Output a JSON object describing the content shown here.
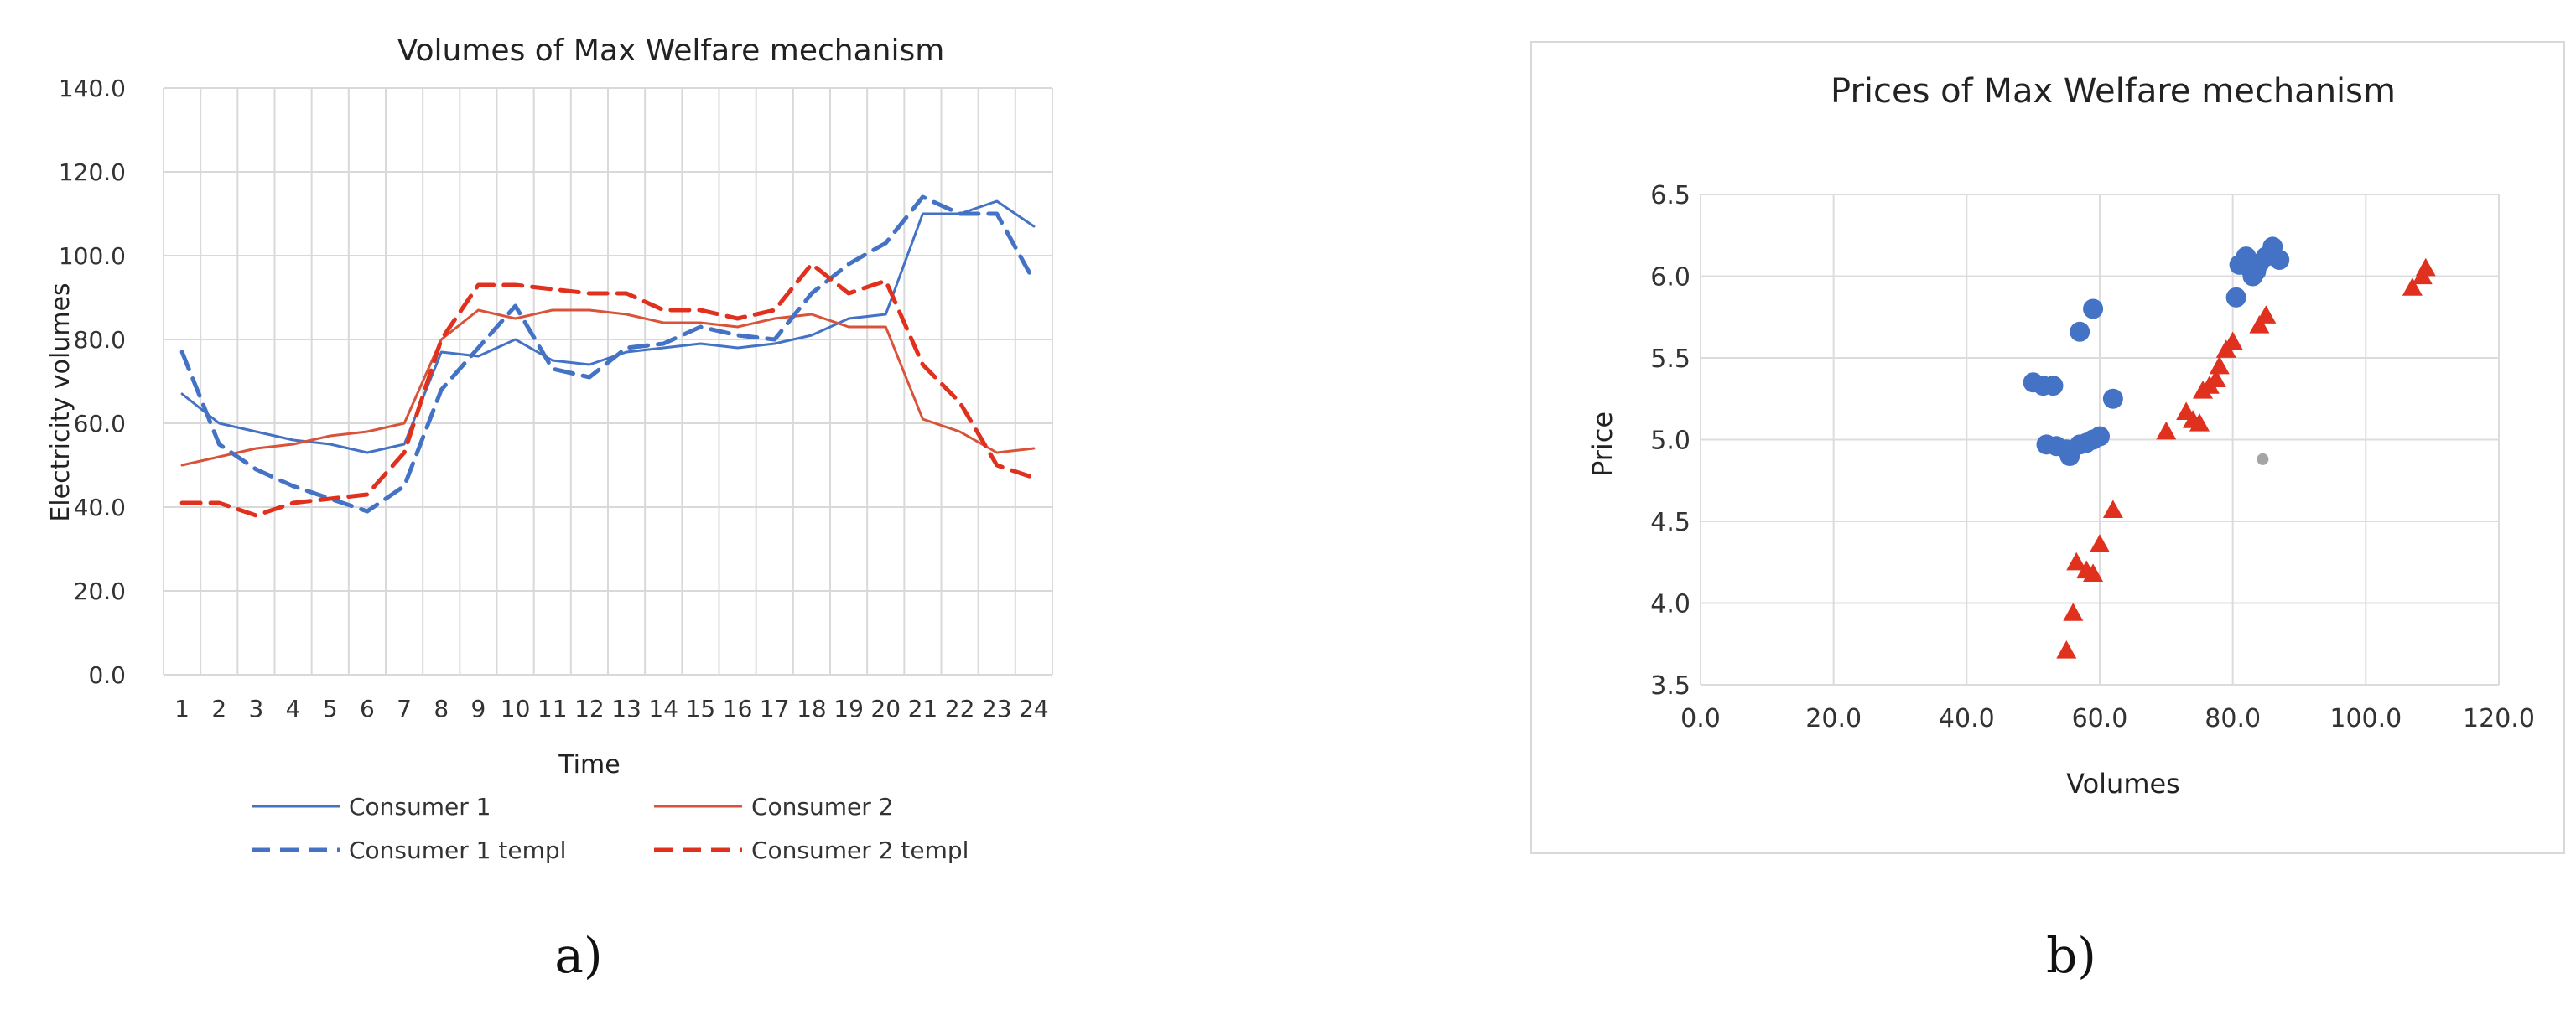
{
  "chart_data": [
    {
      "type": "line",
      "title": "Volumes of Max Welfare mechanism",
      "xlabel": "Time",
      "ylabel": "Electricity volumes",
      "ylim": [
        0,
        140
      ],
      "y_ticks": [
        "0.0",
        "20.0",
        "40.0",
        "60.0",
        "80.0",
        "100.0",
        "120.0",
        "140.0"
      ],
      "categories": [
        "1",
        "2",
        "3",
        "4",
        "5",
        "6",
        "7",
        "8",
        "9",
        "10",
        "11",
        "12",
        "13",
        "14",
        "15",
        "16",
        "17",
        "18",
        "19",
        "20",
        "21",
        "22",
        "23",
        "24"
      ],
      "grid": true,
      "legend": "bottom",
      "series": [
        {
          "name": "Consumer 1",
          "style": "solid",
          "color": "#4472c4",
          "values": [
            67,
            60,
            58,
            56,
            55,
            53,
            55,
            77,
            76,
            80,
            75,
            74,
            77,
            78,
            79,
            78,
            79,
            81,
            85,
            86,
            110,
            110,
            113,
            107
          ]
        },
        {
          "name": "Consumer 2",
          "style": "solid",
          "color": "#d9533a",
          "values": [
            50,
            52,
            54,
            55,
            57,
            58,
            60,
            80,
            87,
            85,
            87,
            87,
            86,
            84,
            84,
            83,
            85,
            86,
            83,
            83,
            61,
            58,
            53,
            54
          ]
        },
        {
          "name": "Consumer 1 templ",
          "style": "dashed",
          "color": "#4472c4",
          "values": [
            77,
            55,
            49,
            45,
            42,
            39,
            45,
            68,
            78,
            88,
            73,
            71,
            78,
            79,
            83,
            81,
            80,
            91,
            98,
            103,
            114,
            110,
            110,
            94
          ]
        },
        {
          "name": "Consumer 2 templ",
          "style": "dashed",
          "color": "#e0301e",
          "values": [
            41,
            41,
            38,
            41,
            42,
            43,
            53,
            80,
            93,
            93,
            92,
            91,
            91,
            87,
            87,
            85,
            87,
            98,
            91,
            94,
            74,
            65,
            50,
            47
          ]
        }
      ]
    },
    {
      "type": "scatter",
      "title": "Prices of Max Welfare mechanism",
      "xlabel": "Volumes",
      "ylabel": "Price",
      "xlim": [
        0,
        120
      ],
      "ylim": [
        3.5,
        6.5
      ],
      "x_ticks": [
        "0.0",
        "20.0",
        "40.0",
        "60.0",
        "80.0",
        "100.0",
        "120.0"
      ],
      "y_ticks": [
        "3.5",
        "4.0",
        "4.5",
        "5.0",
        "5.5",
        "6.0",
        "6.5"
      ],
      "grid": true,
      "series": [
        {
          "marker": "circle",
          "color": "#4472c4",
          "points": [
            [
              50,
              5.35
            ],
            [
              51.5,
              5.33
            ],
            [
              53,
              5.33
            ],
            [
              52,
              4.97
            ],
            [
              53.5,
              4.96
            ],
            [
              55,
              4.94
            ],
            [
              55.5,
              4.9
            ],
            [
              57,
              4.97
            ],
            [
              58,
              4.98
            ],
            [
              59,
              5.0
            ],
            [
              60,
              5.02
            ],
            [
              57,
              5.66
            ],
            [
              59,
              5.8
            ],
            [
              62,
              5.25
            ],
            [
              80.5,
              5.87
            ],
            [
              81,
              6.07
            ],
            [
              82,
              6.12
            ],
            [
              82.5,
              6.05
            ],
            [
              83,
              6.0
            ],
            [
              84,
              6.08
            ],
            [
              85,
              6.12
            ],
            [
              86,
              6.18
            ],
            [
              87,
              6.1
            ],
            [
              83.5,
              6.03
            ]
          ]
        },
        {
          "marker": "triangle",
          "color": "#e0301e",
          "points": [
            [
              55,
              3.71
            ],
            [
              56,
              3.94
            ],
            [
              56.5,
              4.25
            ],
            [
              58,
              4.2
            ],
            [
              59,
              4.18
            ],
            [
              60,
              4.36
            ],
            [
              62,
              4.57
            ],
            [
              70,
              5.05
            ],
            [
              73,
              5.17
            ],
            [
              74,
              5.12
            ],
            [
              75,
              5.1
            ],
            [
              75.5,
              5.3
            ],
            [
              76.5,
              5.33
            ],
            [
              77.5,
              5.37
            ],
            [
              78,
              5.45
            ],
            [
              79,
              5.55
            ],
            [
              80,
              5.6
            ],
            [
              84,
              5.7
            ],
            [
              85,
              5.76
            ],
            [
              107,
              5.93
            ],
            [
              108.5,
              6.0
            ],
            [
              109,
              6.05
            ]
          ]
        },
        {
          "marker": "circle",
          "color": "#a5a5a5",
          "points": [
            [
              84.5,
              4.88
            ]
          ]
        }
      ]
    }
  ],
  "captions": {
    "left": "a)",
    "right": "b)"
  }
}
